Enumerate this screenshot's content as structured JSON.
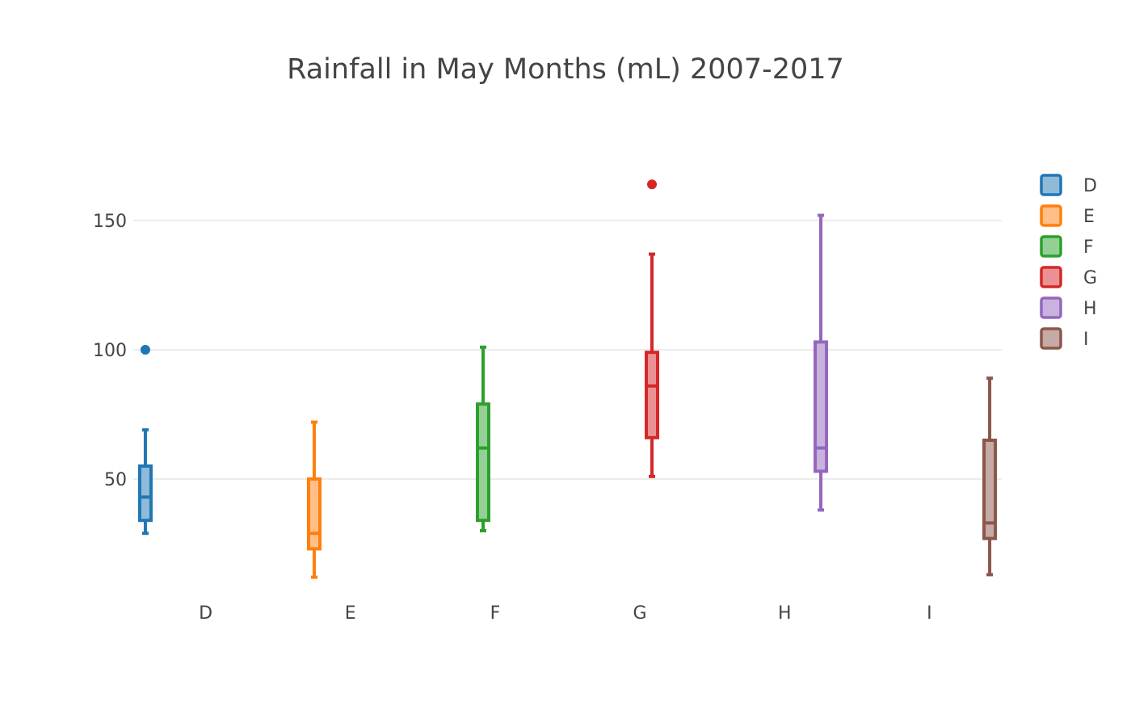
{
  "chart_data": {
    "type": "box",
    "title": "Rainfall in May Months (mL) 2007-2017",
    "xlabel": "",
    "ylabel": "",
    "ylim": [
      5,
      180
    ],
    "yticks": [
      50,
      100,
      150
    ],
    "grid": true,
    "legend_position": "right",
    "categories": [
      "D",
      "E",
      "F",
      "G",
      "H",
      "I"
    ],
    "series": [
      {
        "name": "D",
        "color": "#1f77b4",
        "fill": "#8fbbd9",
        "min": 29,
        "q1": 34,
        "median": 43,
        "q3": 55,
        "max": 69,
        "outliers": [
          100
        ]
      },
      {
        "name": "E",
        "color": "#ff7f0e",
        "fill": "#ffbf86",
        "min": 12,
        "q1": 23,
        "median": 29,
        "q3": 50,
        "max": 72,
        "outliers": []
      },
      {
        "name": "F",
        "color": "#2ca02c",
        "fill": "#95cf95",
        "min": 30,
        "q1": 34,
        "median": 62,
        "q3": 79,
        "max": 101,
        "outliers": []
      },
      {
        "name": "G",
        "color": "#d62728",
        "fill": "#ea9293",
        "min": 51,
        "q1": 66,
        "median": 86,
        "q3": 99,
        "max": 137,
        "outliers": [
          164
        ]
      },
      {
        "name": "H",
        "color": "#9467bd",
        "fill": "#c9b3de",
        "min": 38,
        "q1": 53,
        "median": 62,
        "q3": 103,
        "max": 152,
        "outliers": []
      },
      {
        "name": "I",
        "color": "#8c564b",
        "fill": "#c5aaa5",
        "min": 13,
        "q1": 27,
        "median": 33,
        "q3": 65,
        "max": 89,
        "outliers": []
      }
    ]
  }
}
